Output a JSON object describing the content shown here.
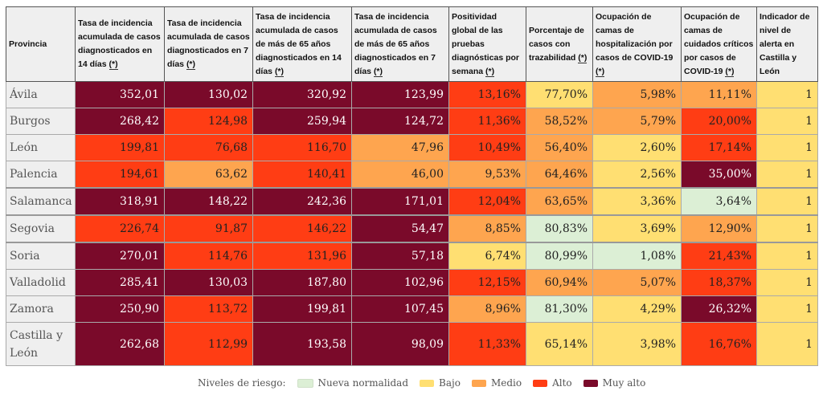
{
  "headers": [
    {
      "text": "Provincia",
      "note": ""
    },
    {
      "text": "Tasa de incidencia acumulada de casos diagnosticados en 14 días ",
      "note": "(*)"
    },
    {
      "text": "Tasa de incidencia acumulada de casos diagnosticados en 7 días ",
      "note": "(*)"
    },
    {
      "text": "Tasa de incidencia acumulada de casos de más de 65 años diagnosticados en 14 días ",
      "note": "(*)"
    },
    {
      "text": "Tasa de incidencia acumulada de casos de más de 65 años diagnosticados en 7 días ",
      "note": "(*)"
    },
    {
      "text": "Positividad global de las pruebas diagnósticas por semana ",
      "note": "(*)"
    },
    {
      "text": "Porcentaje de casos con trazabilidad ",
      "note": "(*)"
    },
    {
      "text": "Ocupación de camas de hospitalización por casos de COVID-19 ",
      "note": "(*)"
    },
    {
      "text": "Ocupación de camas de cuidados críticos por casos de COVID-19 ",
      "note": "(*)"
    },
    {
      "text": "Indicador de nivel de alerta en Castilla y León",
      "note": ""
    }
  ],
  "rows": [
    {
      "provincia": "Ávila",
      "values": [
        "352,01",
        "130,02",
        "320,92",
        "123,99",
        "13,16%",
        "77,70%",
        "5,98%",
        "11,11%",
        "1"
      ],
      "levels": [
        "muy_alto",
        "muy_alto",
        "muy_alto",
        "muy_alto",
        "alto",
        "bajo",
        "medio",
        "medio",
        "bajo"
      ]
    },
    {
      "provincia": "Burgos",
      "values": [
        "268,42",
        "124,98",
        "259,94",
        "124,72",
        "11,36%",
        "58,52%",
        "5,79%",
        "20,00%",
        "1"
      ],
      "levels": [
        "muy_alto",
        "alto",
        "muy_alto",
        "muy_alto",
        "alto",
        "medio",
        "medio",
        "alto",
        "bajo"
      ]
    },
    {
      "provincia": "León",
      "values": [
        "199,81",
        "76,68",
        "116,70",
        "47,96",
        "10,49%",
        "56,40%",
        "2,60%",
        "17,14%",
        "1"
      ],
      "levels": [
        "alto",
        "alto",
        "alto",
        "medio",
        "alto",
        "medio",
        "bajo",
        "alto",
        "bajo"
      ]
    },
    {
      "provincia": "Palencia",
      "values": [
        "194,61",
        "63,62",
        "140,41",
        "46,00",
        "9,53%",
        "64,46%",
        "2,56%",
        "35,00%",
        "1"
      ],
      "levels": [
        "alto",
        "medio",
        "alto",
        "medio",
        "medio",
        "medio",
        "bajo",
        "muy_alto",
        "bajo"
      ]
    },
    {
      "provincia": "Salamanca",
      "values": [
        "318,91",
        "148,22",
        "242,36",
        "171,01",
        "12,04%",
        "63,65%",
        "3,36%",
        "3,64%",
        "1"
      ],
      "levels": [
        "muy_alto",
        "muy_alto",
        "muy_alto",
        "muy_alto",
        "alto",
        "medio",
        "bajo",
        "nueva",
        "bajo"
      ]
    },
    {
      "provincia": "Segovia",
      "values": [
        "226,74",
        "91,87",
        "146,22",
        "54,47",
        "8,85%",
        "80,83%",
        "3,69%",
        "12,90%",
        "1"
      ],
      "levels": [
        "alto",
        "alto",
        "alto",
        "muy_alto",
        "medio",
        "nueva",
        "bajo",
        "medio",
        "bajo"
      ]
    },
    {
      "provincia": "Soria",
      "values": [
        "270,01",
        "114,76",
        "131,96",
        "57,18",
        "6,74%",
        "80,99%",
        "1,08%",
        "21,43%",
        "1"
      ],
      "levels": [
        "muy_alto",
        "alto",
        "alto",
        "muy_alto",
        "bajo",
        "nueva",
        "nueva",
        "alto",
        "bajo"
      ]
    },
    {
      "provincia": "Valladolid",
      "values": [
        "285,41",
        "130,03",
        "187,80",
        "102,96",
        "12,15%",
        "60,94%",
        "5,07%",
        "18,37%",
        "1"
      ],
      "levels": [
        "muy_alto",
        "muy_alto",
        "muy_alto",
        "muy_alto",
        "alto",
        "medio",
        "medio",
        "alto",
        "bajo"
      ]
    },
    {
      "provincia": "Zamora",
      "values": [
        "250,90",
        "113,72",
        "199,81",
        "107,45",
        "8,96%",
        "81,30%",
        "4,29%",
        "26,32%",
        "1"
      ],
      "levels": [
        "muy_alto",
        "alto",
        "muy_alto",
        "muy_alto",
        "medio",
        "nueva",
        "bajo",
        "muy_alto",
        "bajo"
      ]
    },
    {
      "provincia": "Castilla y León",
      "values": [
        "262,68",
        "112,99",
        "193,58",
        "98,09",
        "11,33%",
        "65,14%",
        "3,98%",
        "16,76%",
        "1"
      ],
      "levels": [
        "muy_alto",
        "alto",
        "muy_alto",
        "muy_alto",
        "alto",
        "bajo",
        "bajo",
        "alto",
        "bajo"
      ]
    }
  ],
  "legend": {
    "title": "Niveles de riesgo:",
    "items": [
      {
        "key": "nueva",
        "label": "Nueva normalidad",
        "color": "#dcefd5"
      },
      {
        "key": "bajo",
        "label": "Bajo",
        "color": "#ffdf72"
      },
      {
        "key": "medio",
        "label": "Medio",
        "color": "#fea54f"
      },
      {
        "key": "alto",
        "label": "Alto",
        "color": "#ff3d14"
      },
      {
        "key": "muy_alto",
        "label": "Muy alto",
        "color": "#7a0a2a"
      }
    ]
  }
}
